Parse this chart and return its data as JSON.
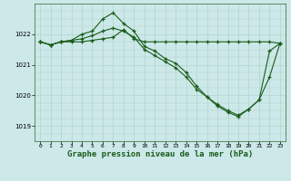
{
  "bg_color": "#cce8e8",
  "grid_color": "#b0d4cc",
  "line_color": "#1a5c1a",
  "title": "Graphe pression niveau de la mer (hPa)",
  "title_fontsize": 6.5,
  "xlim": [
    -0.5,
    23.5
  ],
  "ylim": [
    1018.5,
    1023.0
  ],
  "yticks": [
    1019,
    1020,
    1021,
    1022
  ],
  "xticks": [
    0,
    1,
    2,
    3,
    4,
    5,
    6,
    7,
    8,
    9,
    10,
    11,
    12,
    13,
    14,
    15,
    16,
    17,
    18,
    19,
    20,
    21,
    22,
    23
  ],
  "series": [
    {
      "x": [
        0,
        1,
        2,
        3,
        4,
        5,
        6,
        7,
        8,
        9,
        10,
        11,
        12,
        13,
        14,
        15,
        16,
        17,
        18,
        19,
        20,
        21,
        22,
        23
      ],
      "y": [
        1021.75,
        1021.65,
        1021.75,
        1021.75,
        1021.75,
        1021.8,
        1021.85,
        1021.9,
        1022.15,
        1021.85,
        1021.75,
        1021.75,
        1021.75,
        1021.75,
        1021.75,
        1021.75,
        1021.75,
        1021.75,
        1021.75,
        1021.75,
        1021.75,
        1021.75,
        1021.75,
        1021.7
      ]
    },
    {
      "x": [
        0,
        1,
        2,
        3,
        4,
        5,
        6,
        7,
        8,
        9,
        10,
        11,
        12,
        13,
        14,
        15,
        16,
        17,
        18,
        19,
        20,
        21,
        22,
        23
      ],
      "y": [
        1021.75,
        1021.65,
        1021.75,
        1021.8,
        1022.0,
        1022.1,
        1022.5,
        1022.7,
        1022.35,
        1022.1,
        1021.6,
        1021.45,
        1021.2,
        1021.05,
        1020.75,
        1020.3,
        1019.95,
        1019.65,
        1019.45,
        1019.3,
        1019.55,
        1019.85,
        1021.45,
        1021.7
      ]
    },
    {
      "x": [
        0,
        1,
        2,
        3,
        4,
        5,
        6,
        7,
        8,
        9,
        10,
        11,
        12,
        13,
        14,
        15,
        16,
        17,
        18,
        19,
        20,
        21,
        22,
        23
      ],
      "y": [
        1021.75,
        1021.65,
        1021.75,
        1021.8,
        1021.85,
        1021.95,
        1022.1,
        1022.2,
        1022.1,
        1021.9,
        1021.5,
        1021.3,
        1021.1,
        1020.9,
        1020.6,
        1020.2,
        1019.95,
        1019.7,
        1019.5,
        1019.35,
        1019.55,
        1019.85,
        1020.6,
        1021.7
      ]
    }
  ]
}
